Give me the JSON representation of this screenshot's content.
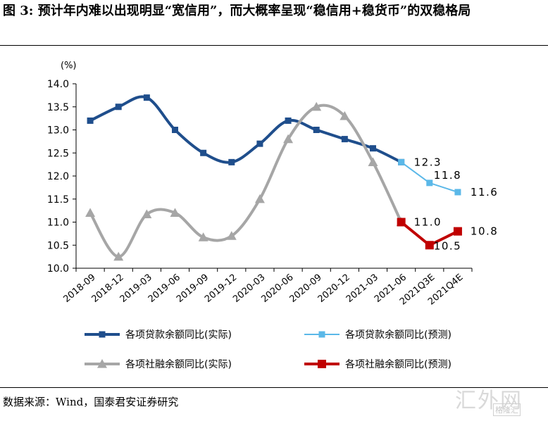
{
  "header": {
    "title": "图 3:  预计年内难以出现明显“宽信用”，而大概率呈现“稳信用+稳货币”的双稳格局"
  },
  "footer": {
    "source": "数据来源：Wind，国泰君安证券研究"
  },
  "watermark": {
    "main": "汇外网",
    "sub": "格隆汇"
  },
  "colors": {
    "loan_actual": "#1f4e8c",
    "loan_forecast": "#5bb8e8",
    "tsf_actual": "#a6a6a6",
    "tsf_forecast": "#c00000"
  },
  "chart_data": {
    "type": "line",
    "unit_label": "(%)",
    "ylim": [
      10.0,
      14.0
    ],
    "yticks": [
      "10.0",
      "10.5",
      "11.0",
      "11.5",
      "12.0",
      "12.5",
      "13.0",
      "13.5",
      "14.0"
    ],
    "categories": [
      "2018-09",
      "2018-12",
      "2019-03",
      "2019-06",
      "2019-09",
      "2019-12",
      "2020-03",
      "2020-06",
      "2020-09",
      "2020-12",
      "2021-03",
      "2021-06",
      "2021Q3E",
      "2021Q4E"
    ],
    "grid": false,
    "legend_position": "bottom",
    "series": [
      {
        "name": "各项贷款余额同比(实际)",
        "color_key": "loan_actual",
        "marker": "square",
        "values": [
          13.2,
          13.5,
          13.7,
          13.0,
          12.5,
          12.3,
          12.7,
          13.2,
          13.0,
          12.8,
          12.6,
          12.3,
          null,
          null
        ]
      },
      {
        "name": "各项贷款余额同比(预测)",
        "color_key": "loan_forecast",
        "marker": "square",
        "values": [
          null,
          null,
          null,
          null,
          null,
          null,
          null,
          null,
          null,
          null,
          null,
          12.3,
          11.85,
          11.65
        ]
      },
      {
        "name": "各项社融余额同比(实际)",
        "color_key": "tsf_actual",
        "marker": "triangle",
        "values": [
          11.2,
          10.25,
          11.17,
          11.2,
          10.67,
          10.7,
          11.5,
          12.8,
          13.5,
          13.3,
          12.3,
          11.0,
          null,
          null
        ]
      },
      {
        "name": "各项社融余额同比(预测)",
        "color_key": "tsf_forecast",
        "marker": "square",
        "values": [
          null,
          null,
          null,
          null,
          null,
          null,
          null,
          null,
          null,
          null,
          null,
          11.0,
          10.5,
          10.8
        ]
      }
    ],
    "annotations": [
      {
        "text": "12.3",
        "cat": 11,
        "value": 12.3,
        "series_index": 1
      },
      {
        "text": "11.8",
        "cat": 12,
        "value": 11.85,
        "series_index": 1
      },
      {
        "text": "11.6",
        "cat": 13,
        "value": 11.65,
        "series_index": 1
      },
      {
        "text": "11.0",
        "cat": 11,
        "value": 11.0,
        "series_index": 3
      },
      {
        "text": "10.5",
        "cat": 12,
        "value": 10.5,
        "series_index": 3
      },
      {
        "text": "10.8",
        "cat": 13,
        "value": 10.8,
        "series_index": 3
      }
    ]
  }
}
